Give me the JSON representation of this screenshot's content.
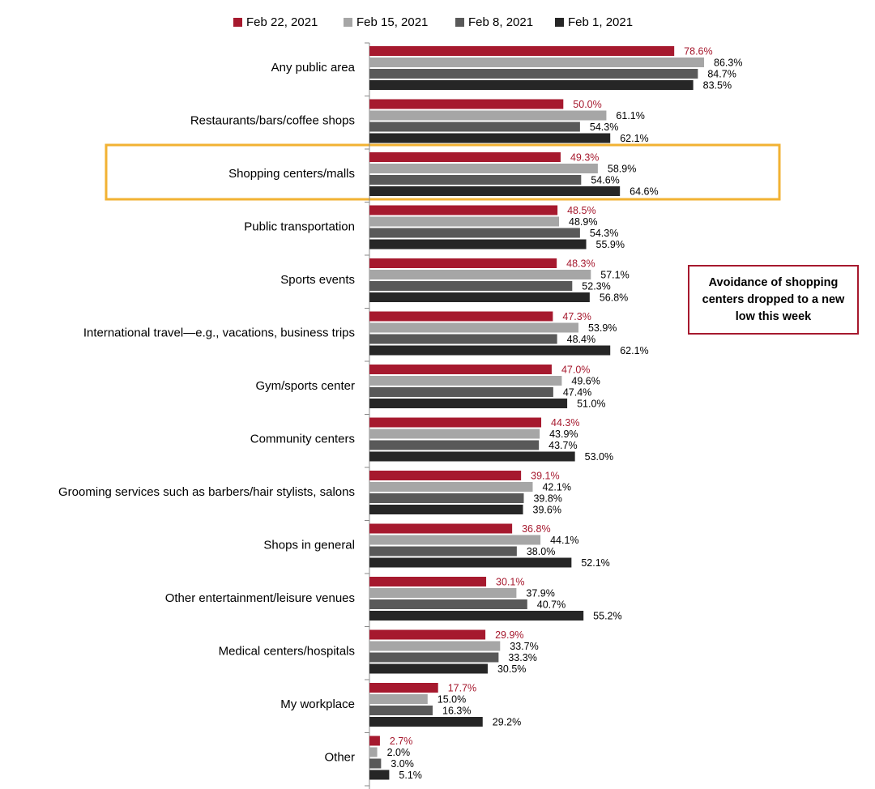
{
  "chart_data": {
    "type": "bar",
    "orientation": "horizontal",
    "categories": [
      "Any public area",
      "Restaurants/bars/coffee shops",
      "Shopping centers/malls",
      "Public transportation",
      "Sports events",
      "International travel—e.g., vacations, business trips",
      "Gym/sports center",
      "Community centers",
      "Grooming services such as barbers/hair stylists, salons",
      "Shops in general",
      "Other entertainment/leisure venues",
      "Medical centers/hospitals",
      "My workplace",
      "Other"
    ],
    "xlim": [
      0,
      100
    ],
    "series": [
      {
        "name": "Feb 22, 2021",
        "color": "#a6192e",
        "values": [
          78.6,
          50.0,
          49.3,
          48.5,
          48.3,
          47.3,
          47.0,
          44.3,
          39.1,
          36.8,
          30.1,
          29.9,
          17.7,
          2.7
        ],
        "value_labels": [
          "78.6%",
          "50.0%",
          "49.3%",
          "48.5%",
          "48.3%",
          "47.3%",
          "47.0%",
          "44.3%",
          "39.1%",
          "36.8%",
          "30.1%",
          "29.9%",
          "17.7%",
          "2.7%"
        ]
      },
      {
        "name": "Feb 15, 2021",
        "color": "#a6a6a6",
        "values": [
          86.3,
          61.1,
          58.9,
          48.9,
          57.1,
          53.9,
          49.6,
          43.9,
          42.1,
          44.1,
          37.9,
          33.7,
          15.0,
          2.0
        ],
        "value_labels": [
          "86.3%",
          "61.1%",
          "58.9%",
          "48.9%",
          "57.1%",
          "53.9%",
          "49.6%",
          "43.9%",
          "42.1%",
          "44.1%",
          "37.9%",
          "33.7%",
          "15.0%",
          "2.0%"
        ]
      },
      {
        "name": "Feb 8, 2021",
        "color": "#595959",
        "values": [
          84.7,
          54.3,
          54.6,
          54.3,
          52.3,
          48.4,
          47.4,
          43.7,
          39.8,
          38.0,
          40.7,
          33.3,
          16.3,
          3.0
        ],
        "value_labels": [
          "84.7%",
          "54.3%",
          "54.6%",
          "54.3%",
          "52.3%",
          "48.4%",
          "47.4%",
          "43.7%",
          "39.8%",
          "38.0%",
          "40.7%",
          "33.3%",
          "16.3%",
          "3.0%"
        ]
      },
      {
        "name": "Feb 1, 2021",
        "color": "#262626",
        "values": [
          83.5,
          62.1,
          64.6,
          55.9,
          56.8,
          62.1,
          51.0,
          53.0,
          39.6,
          52.1,
          55.2,
          30.5,
          29.2,
          5.1
        ],
        "value_labels": [
          "83.5%",
          "62.1%",
          "64.6%",
          "55.9%",
          "56.8%",
          "62.1%",
          "51.0%",
          "53.0%",
          "39.6%",
          "52.1%",
          "55.2%",
          "30.5%",
          "29.2%",
          "5.1%"
        ]
      }
    ],
    "annotation": "Avoidance of shopping centers dropped to a new low this week"
  }
}
